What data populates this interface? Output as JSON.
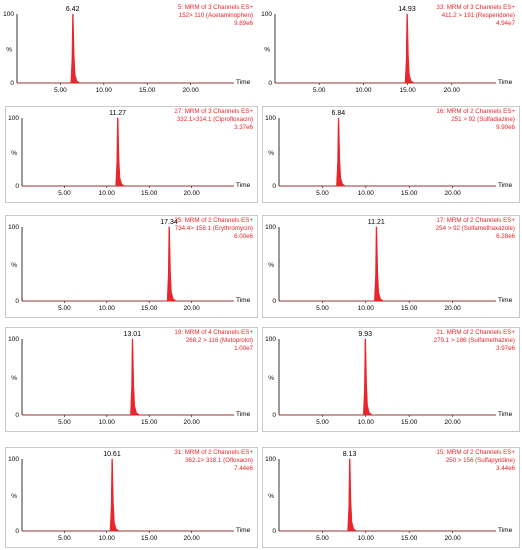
{
  "chart_data": [
    {
      "type": "line",
      "title": "",
      "xlabel": "Time",
      "ylabel": "%",
      "xlim": [
        0,
        25
      ],
      "ylim": [
        0,
        100
      ],
      "x_ticks": [
        "5.00",
        "10.00",
        "15.00",
        "20.00"
      ],
      "y_ticks": [
        "0",
        "100"
      ],
      "grid": false,
      "peak_time": 6.42,
      "peak_label": "6.42",
      "annotation": [
        "5: MRM of 3 Channels ES+",
        "152> 110 (Acetaminophen)",
        "9.89e6"
      ]
    },
    {
      "type": "line",
      "title": "",
      "xlabel": "Time",
      "ylabel": "%",
      "xlim": [
        0,
        25
      ],
      "ylim": [
        0,
        100
      ],
      "x_ticks": [
        "5.00",
        "10.00",
        "15.00",
        "20.00"
      ],
      "y_ticks": [
        "0",
        "100"
      ],
      "grid": false,
      "peak_time": 14.93,
      "peak_label": "14.93",
      "annotation": [
        "33: MRM of 3 Channels ES+",
        "411.2 > 191 (Resperidone)",
        "4.94e7"
      ]
    },
    {
      "type": "line",
      "title": "",
      "xlabel": "Time",
      "ylabel": "%",
      "xlim": [
        0,
        25
      ],
      "ylim": [
        0,
        100
      ],
      "x_ticks": [
        "5.00",
        "10.00",
        "15.00",
        "20.00"
      ],
      "y_ticks": [
        "0",
        "100"
      ],
      "grid": false,
      "peak_time": 11.27,
      "peak_label": "11.27",
      "annotation": [
        "27: MRM of 3 Channels ES+",
        "332.1>314.1 (Ciprofloxacin)",
        "3.37e6"
      ]
    },
    {
      "type": "line",
      "title": "",
      "xlabel": "Time",
      "ylabel": "%",
      "xlim": [
        0,
        25
      ],
      "ylim": [
        0,
        100
      ],
      "x_ticks": [
        "5.00",
        "10.00",
        "15.00",
        "20.00"
      ],
      "y_ticks": [
        "0",
        "100"
      ],
      "grid": false,
      "peak_time": 6.84,
      "peak_label": "6.84",
      "annotation": [
        "16: MRM of 2 Channels ES+",
        "251 > 92 (Sulfadiazine)",
        "9.90e6"
      ]
    },
    {
      "type": "line",
      "title": "",
      "xlabel": "Time",
      "ylabel": "%",
      "xlim": [
        0,
        25
      ],
      "ylim": [
        0,
        100
      ],
      "x_ticks": [
        "5.00",
        "10.00",
        "15.00",
        "20.00"
      ],
      "y_ticks": [
        "0",
        "100"
      ],
      "grid": false,
      "peak_time": 17.34,
      "peak_label": "17.34",
      "annotation": [
        "35: MRM of 2 Channels ES+",
        "734.4> 158.1 (Erythromycin)",
        "6.00e6"
      ]
    },
    {
      "type": "line",
      "title": "",
      "xlabel": "Time",
      "ylabel": "%",
      "xlim": [
        0,
        25
      ],
      "ylim": [
        0,
        100
      ],
      "x_ticks": [
        "5.00",
        "10.00",
        "15.00",
        "20.00"
      ],
      "y_ticks": [
        "0",
        "100"
      ],
      "grid": false,
      "peak_time": 11.21,
      "peak_label": "11.21",
      "annotation": [
        "17: MRM of 2 Channels ES+",
        "254 > 92 (Sulfamethaxazole)",
        "6.28e6"
      ]
    },
    {
      "type": "line",
      "title": "",
      "xlabel": "Time",
      "ylabel": "%",
      "xlim": [
        0,
        25
      ],
      "ylim": [
        0,
        100
      ],
      "x_ticks": [
        "5.00",
        "10.00",
        "15.00",
        "20.00"
      ],
      "y_ticks": [
        "0",
        "100"
      ],
      "grid": false,
      "peak_time": 13.01,
      "peak_label": "13.01",
      "annotation": [
        "19: MRM of 4 Channels ES+",
        "268.2 > 116 (Metoprolol)",
        "1.00e7"
      ]
    },
    {
      "type": "line",
      "title": "",
      "xlabel": "Time",
      "ylabel": "%",
      "xlim": [
        0,
        25
      ],
      "ylim": [
        0,
        100
      ],
      "x_ticks": [
        "5.00",
        "10.00",
        "15.00",
        "20.00"
      ],
      "y_ticks": [
        "0",
        "100"
      ],
      "grid": false,
      "peak_time": 9.93,
      "peak_label": "9.93",
      "annotation": [
        "21: MRM of 2 Channels ES+",
        "279.1 > 186 (Sulfamethazine)",
        "3.97e6"
      ]
    },
    {
      "type": "line",
      "title": "",
      "xlabel": "Time",
      "ylabel": "%",
      "xlim": [
        0,
        25
      ],
      "ylim": [
        0,
        100
      ],
      "x_ticks": [
        "5.00",
        "10.00",
        "15.00",
        "20.00"
      ],
      "y_ticks": [
        "0",
        "100"
      ],
      "grid": false,
      "peak_time": 10.61,
      "peak_label": "10.61",
      "annotation": [
        "31: MRM of 2 Channels ES+",
        "362.1> 318.1 (Ofloxacin)",
        "7.44e6"
      ]
    },
    {
      "type": "line",
      "title": "",
      "xlabel": "Time",
      "ylabel": "%",
      "xlim": [
        0,
        25
      ],
      "ylim": [
        0,
        100
      ],
      "x_ticks": [
        "5.00",
        "10.00",
        "15.00",
        "20.00"
      ],
      "y_ticks": [
        "0",
        "100"
      ],
      "grid": false,
      "peak_time": 8.13,
      "peak_label": "8.13",
      "annotation": [
        "15: MRM of 2 Channels ES+",
        "250 > 156 (Sulfapyridine)",
        "3.44e6"
      ]
    }
  ],
  "colors": {
    "trace": "#e8262b",
    "annotation": "#e8262b",
    "axis": "#000000",
    "panel_border": "#c9c9c9"
  }
}
